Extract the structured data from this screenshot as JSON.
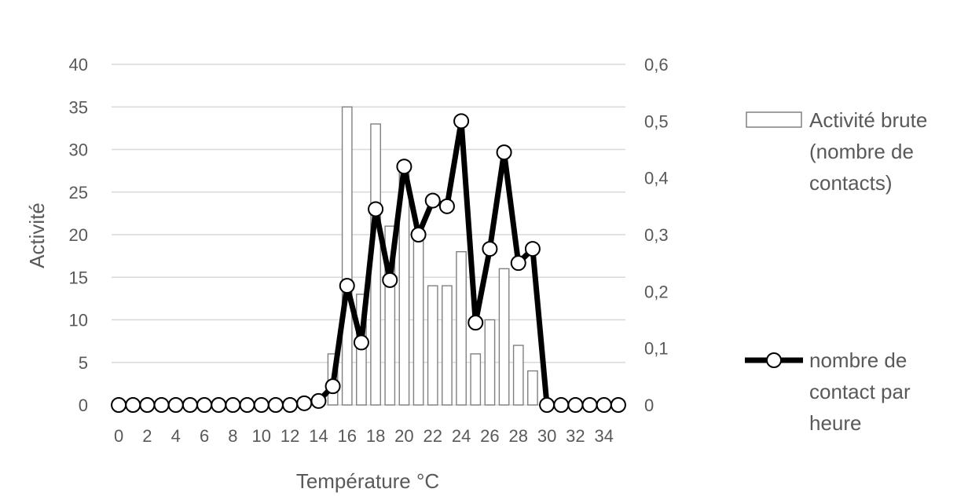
{
  "chart_data": {
    "type": "bar",
    "x": [
      0,
      1,
      2,
      3,
      4,
      5,
      6,
      7,
      8,
      9,
      10,
      11,
      12,
      13,
      14,
      15,
      16,
      17,
      18,
      19,
      20,
      21,
      22,
      23,
      24,
      25,
      26,
      27,
      28,
      29,
      30,
      31,
      32,
      33,
      34,
      35
    ],
    "x_tick_labels": [
      "0",
      "2",
      "4",
      "6",
      "8",
      "10",
      "12",
      "14",
      "16",
      "18",
      "20",
      "22",
      "24",
      "26",
      "28",
      "30",
      "32",
      "34"
    ],
    "xlabel": "Température °C",
    "ylabel": "Activité",
    "ylim": [
      0,
      40
    ],
    "y_ticks": [
      "0",
      "5",
      "10",
      "15",
      "20",
      "25",
      "30",
      "35",
      "40"
    ],
    "y2lim": [
      0,
      0.6
    ],
    "y2_ticks": [
      "0",
      "0,1",
      "0,2",
      "0,3",
      "0,4",
      "0,5",
      "0,6"
    ],
    "grid": true,
    "legend_position": "right",
    "series": [
      {
        "name": "Activité brute (nombre de contacts)",
        "type": "bar",
        "axis": "left",
        "color": "#ffffff",
        "edge_color": "#808080",
        "values": [
          0,
          0,
          0,
          0,
          0,
          0,
          0,
          0,
          0,
          0,
          0,
          0,
          0,
          0,
          0,
          6,
          35,
          13,
          33,
          21,
          28,
          20,
          14,
          14,
          18,
          6,
          10,
          16,
          7,
          4,
          0,
          0,
          0,
          0,
          0,
          0
        ]
      },
      {
        "name": "nombre de contact par heure",
        "type": "line",
        "axis": "right",
        "color": "#000000",
        "values": [
          0,
          0,
          0,
          0,
          0,
          0,
          0,
          0,
          0,
          0,
          0,
          0,
          0,
          0.003,
          0.007,
          0.033,
          0.21,
          0.11,
          0.345,
          0.22,
          0.42,
          0.3,
          0.36,
          0.35,
          0.5,
          0.145,
          0.275,
          0.445,
          0.25,
          0.275,
          0,
          0,
          0,
          0,
          0,
          0
        ]
      }
    ]
  }
}
